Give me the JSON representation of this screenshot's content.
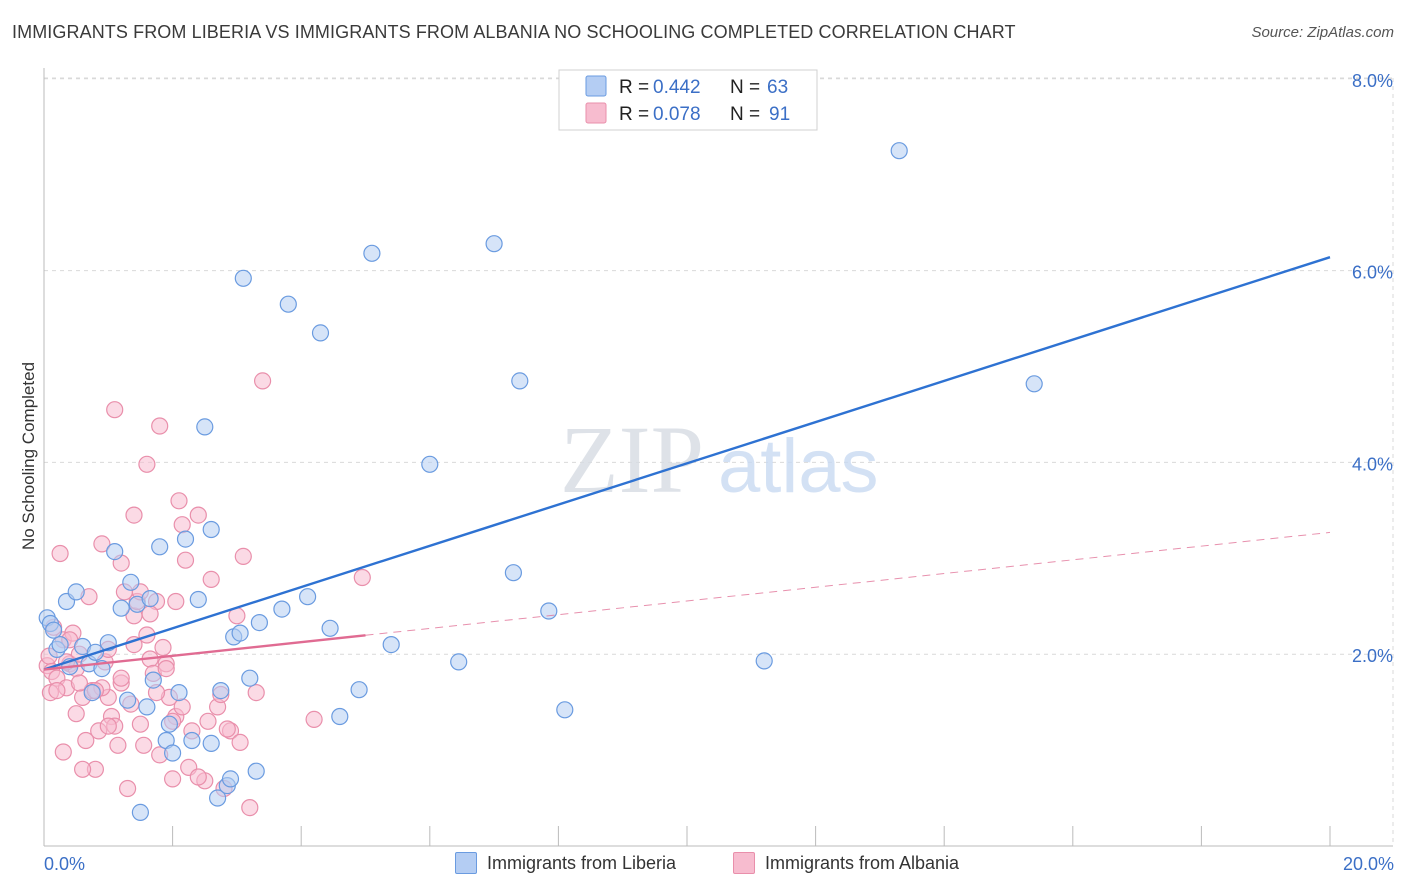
{
  "header": {
    "title": "IMMIGRANTS FROM LIBERIA VS IMMIGRANTS FROM ALBANIA NO SCHOOLING COMPLETED CORRELATION CHART",
    "source": "Source: ZipAtlas.com"
  },
  "watermark": {
    "zip": "ZIP",
    "atlas": "atlas"
  },
  "colors": {
    "liberia_fill": "#b4cdf3",
    "liberia_stroke": "#6a9be0",
    "liberia_line": "#2e72d2",
    "albania_fill": "#f7bccf",
    "albania_stroke": "#e98fab",
    "albania_line": "#e06b92",
    "accent_text": "#3b6fc6",
    "grid": "#d9d9d9"
  },
  "chart_data": {
    "type": "scatter",
    "title": "IMMIGRANTS FROM LIBERIA VS IMMIGRANTS FROM ALBANIA NO SCHOOLING COMPLETED CORRELATION CHART",
    "xlabel": "",
    "ylabel": "No Schooling Completed",
    "xlim": [
      0,
      20
    ],
    "ylim": [
      0,
      8.3
    ],
    "x_tick_labels": {
      "left": "0.0%",
      "right": "20.0%"
    },
    "y_ticks": [
      {
        "value": 2,
        "label": "2.0%"
      },
      {
        "value": 4,
        "label": "4.0%"
      },
      {
        "value": 6,
        "label": "6.0%"
      },
      {
        "value": 8,
        "label": "8.0%"
      }
    ],
    "legend_stats": [
      {
        "r_label": "R =",
        "r_value": "0.442",
        "n_label": "N =",
        "n_value": "63"
      },
      {
        "r_label": "R =",
        "r_value": "0.078",
        "n_label": "N =",
        "n_value": "91"
      }
    ],
    "series": [
      {
        "name": "Immigrants from Liberia",
        "trend": {
          "x1": 0,
          "y1": 1.84,
          "x2": 20,
          "y2": 6.14,
          "solid_until": 20
        },
        "points": [
          [
            0.05,
            2.38
          ],
          [
            0.1,
            2.32
          ],
          [
            0.2,
            2.05
          ],
          [
            0.25,
            2.1
          ],
          [
            0.35,
            2.55
          ],
          [
            0.4,
            1.87
          ],
          [
            0.5,
            2.65
          ],
          [
            0.6,
            2.08
          ],
          [
            0.7,
            1.9
          ],
          [
            0.75,
            1.6
          ],
          [
            0.8,
            2.02
          ],
          [
            0.9,
            1.85
          ],
          [
            1.0,
            2.12
          ],
          [
            1.1,
            3.07
          ],
          [
            1.2,
            2.48
          ],
          [
            1.3,
            1.52
          ],
          [
            1.35,
            2.75
          ],
          [
            1.45,
            2.52
          ],
          [
            1.6,
            1.45
          ],
          [
            1.65,
            2.58
          ],
          [
            1.7,
            1.73
          ],
          [
            1.8,
            3.12
          ],
          [
            1.9,
            1.1
          ],
          [
            1.95,
            1.27
          ],
          [
            2.0,
            0.97
          ],
          [
            2.1,
            1.6
          ],
          [
            2.2,
            3.2
          ],
          [
            2.3,
            1.1
          ],
          [
            2.4,
            2.57
          ],
          [
            2.5,
            4.37
          ],
          [
            2.6,
            1.07
          ],
          [
            2.6,
            3.3
          ],
          [
            2.7,
            0.5
          ],
          [
            2.75,
            1.62
          ],
          [
            2.85,
            0.63
          ],
          [
            2.9,
            0.7
          ],
          [
            2.95,
            2.18
          ],
          [
            3.05,
            2.22
          ],
          [
            3.1,
            5.92
          ],
          [
            3.2,
            1.75
          ],
          [
            3.3,
            0.78
          ],
          [
            3.35,
            2.33
          ],
          [
            3.7,
            2.47
          ],
          [
            3.8,
            5.65
          ],
          [
            4.1,
            2.6
          ],
          [
            4.3,
            5.35
          ],
          [
            4.45,
            2.27
          ],
          [
            4.6,
            1.35
          ],
          [
            4.9,
            1.63
          ],
          [
            5.1,
            6.18
          ],
          [
            5.4,
            2.1
          ],
          [
            6.0,
            3.98
          ],
          [
            6.45,
            1.92
          ],
          [
            7.0,
            6.28
          ],
          [
            7.3,
            2.85
          ],
          [
            7.4,
            4.85
          ],
          [
            7.85,
            2.45
          ],
          [
            8.1,
            1.42
          ],
          [
            11.2,
            1.93
          ],
          [
            13.3,
            7.25
          ],
          [
            15.4,
            4.82
          ],
          [
            1.5,
            0.35
          ],
          [
            0.15,
            2.25
          ]
        ]
      },
      {
        "name": "Immigrants from Albania",
        "trend": {
          "x1": 0,
          "y1": 1.84,
          "x2": 20,
          "y2": 3.27,
          "solid_until": 5.0
        },
        "points": [
          [
            0.05,
            1.88
          ],
          [
            0.08,
            1.98
          ],
          [
            0.1,
            1.6
          ],
          [
            0.12,
            1.82
          ],
          [
            0.15,
            2.28
          ],
          [
            0.2,
            1.75
          ],
          [
            0.25,
            3.05
          ],
          [
            0.3,
            2.15
          ],
          [
            0.35,
            1.65
          ],
          [
            0.4,
            1.9
          ],
          [
            0.45,
            2.22
          ],
          [
            0.5,
            1.85
          ],
          [
            0.5,
            1.38
          ],
          [
            0.55,
            2.0
          ],
          [
            0.6,
            1.55
          ],
          [
            0.65,
            1.1
          ],
          [
            0.7,
            2.6
          ],
          [
            0.75,
            1.62
          ],
          [
            0.8,
            0.8
          ],
          [
            0.85,
            1.2
          ],
          [
            0.9,
            3.15
          ],
          [
            0.95,
            1.92
          ],
          [
            1.0,
            2.05
          ],
          [
            1.0,
            1.55
          ],
          [
            1.05,
            1.35
          ],
          [
            1.1,
            1.25
          ],
          [
            1.1,
            4.55
          ],
          [
            1.15,
            1.05
          ],
          [
            1.2,
            1.7
          ],
          [
            1.2,
            2.95
          ],
          [
            1.25,
            2.65
          ],
          [
            1.3,
            0.6
          ],
          [
            1.35,
            1.48
          ],
          [
            1.4,
            3.45
          ],
          [
            1.4,
            2.4
          ],
          [
            1.45,
            2.55
          ],
          [
            1.5,
            1.27
          ],
          [
            1.55,
            1.05
          ],
          [
            1.6,
            2.2
          ],
          [
            1.65,
            1.95
          ],
          [
            1.7,
            1.8
          ],
          [
            1.75,
            2.55
          ],
          [
            1.8,
            4.38
          ],
          [
            1.85,
            2.07
          ],
          [
            1.9,
            1.9
          ],
          [
            1.95,
            1.55
          ],
          [
            2.0,
            0.7
          ],
          [
            2.05,
            1.35
          ],
          [
            2.1,
            3.6
          ],
          [
            2.15,
            3.35
          ],
          [
            2.2,
            2.98
          ],
          [
            2.25,
            0.82
          ],
          [
            2.3,
            1.2
          ],
          [
            2.4,
            3.45
          ],
          [
            2.5,
            0.68
          ],
          [
            2.6,
            2.78
          ],
          [
            2.7,
            1.45
          ],
          [
            2.8,
            0.6
          ],
          [
            2.9,
            1.2
          ],
          [
            3.0,
            2.4
          ],
          [
            3.05,
            1.08
          ],
          [
            3.1,
            3.02
          ],
          [
            3.2,
            0.4
          ],
          [
            3.3,
            1.6
          ],
          [
            3.4,
            4.85
          ],
          [
            4.2,
            1.32
          ],
          [
            4.95,
            2.8
          ],
          [
            0.3,
            0.98
          ],
          [
            0.6,
            0.8
          ],
          [
            0.9,
            1.65
          ],
          [
            1.2,
            1.75
          ],
          [
            1.6,
            3.98
          ],
          [
            1.8,
            0.95
          ],
          [
            2.0,
            1.3
          ],
          [
            2.4,
            0.72
          ],
          [
            0.4,
            2.15
          ],
          [
            0.8,
            1.62
          ],
          [
            1.0,
            1.25
          ],
          [
            1.4,
            2.1
          ],
          [
            1.75,
            1.6
          ],
          [
            1.9,
            1.85
          ],
          [
            2.15,
            1.45
          ],
          [
            2.55,
            1.3
          ],
          [
            2.75,
            1.58
          ],
          [
            0.2,
            1.62
          ],
          [
            0.55,
            1.7
          ],
          [
            1.5,
            2.65
          ],
          [
            1.65,
            2.42
          ],
          [
            2.05,
            2.55
          ],
          [
            0.35,
            1.92
          ],
          [
            2.85,
            1.22
          ]
        ]
      }
    ]
  }
}
